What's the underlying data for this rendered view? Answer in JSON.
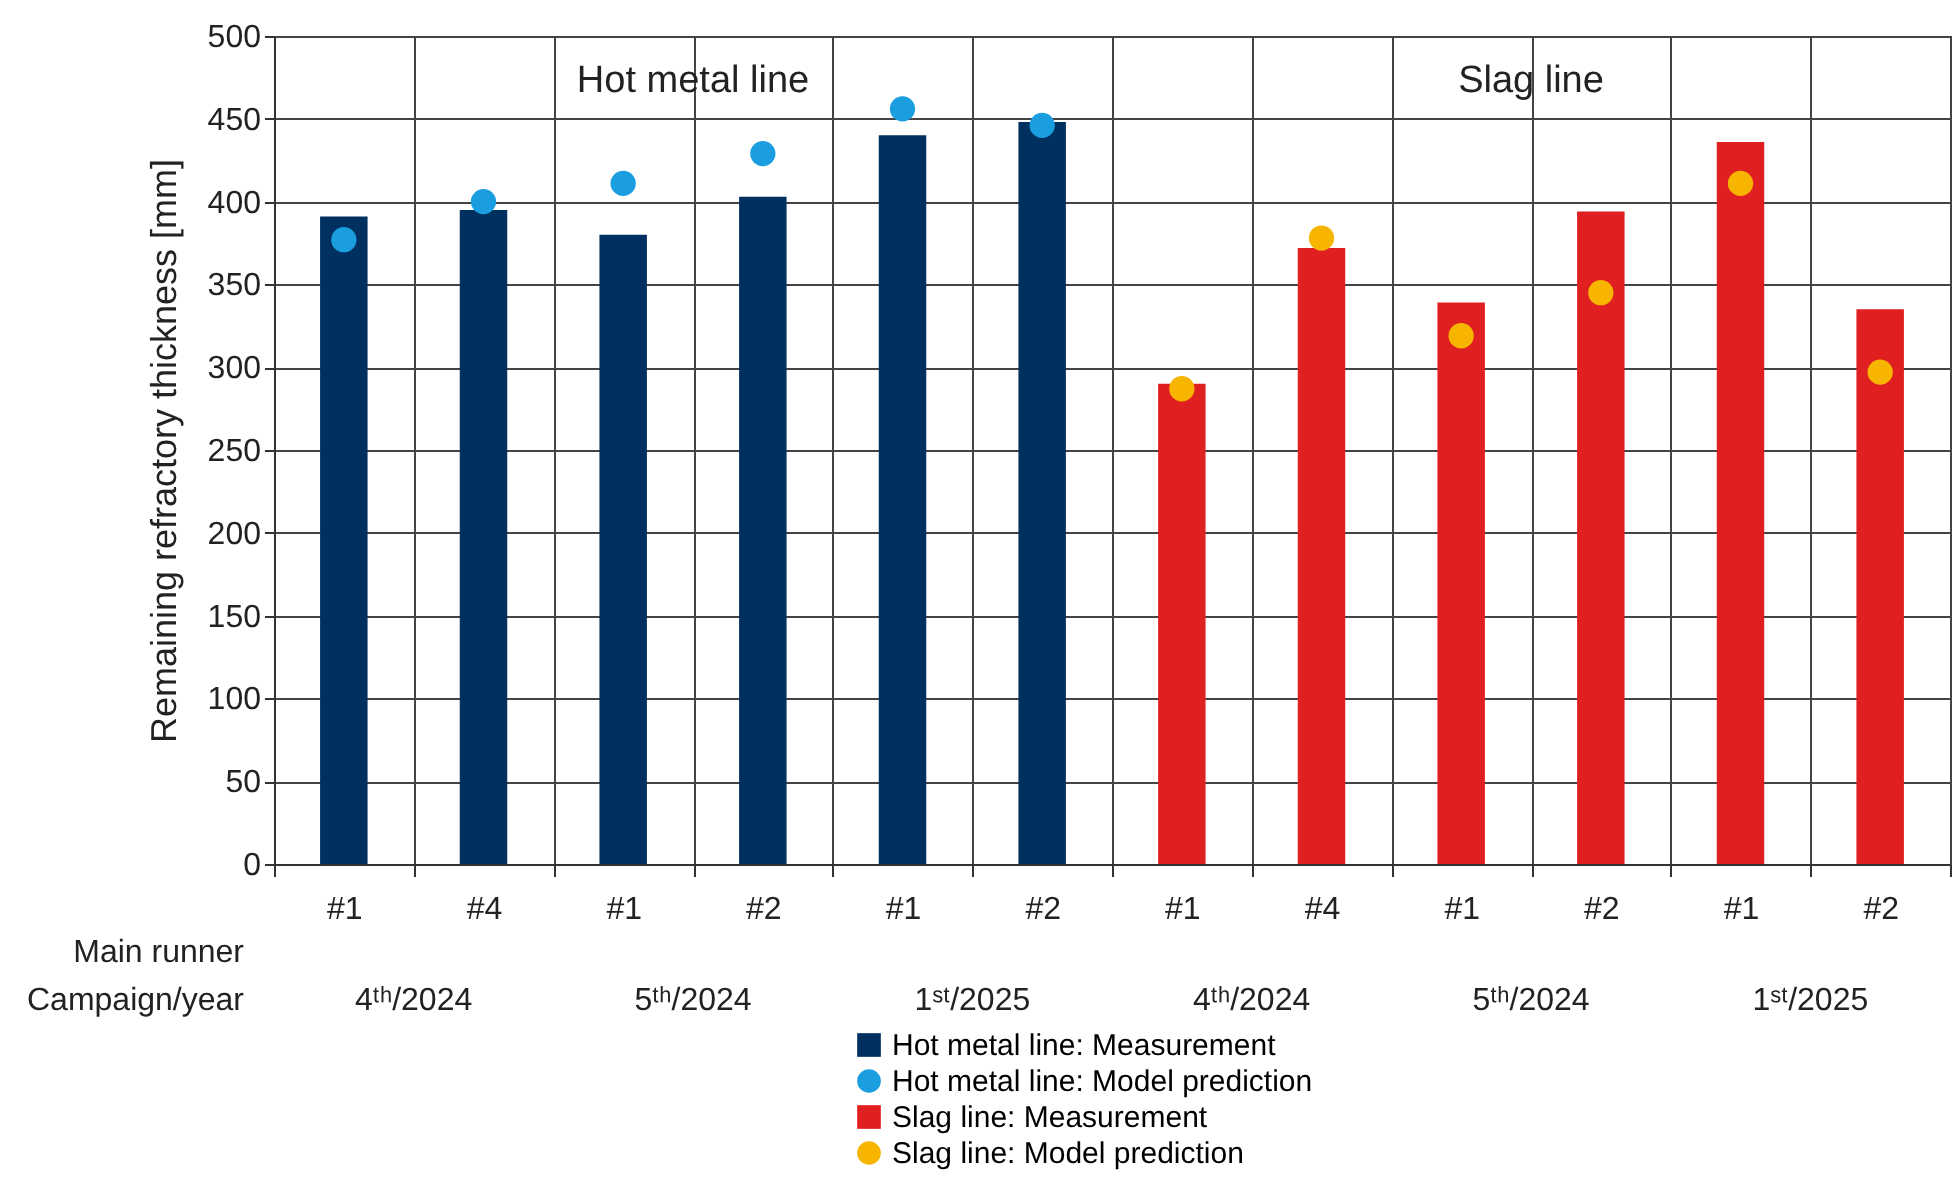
{
  "chart_data": {
    "type": "bar",
    "ylabel": "Remaining refractory thickness [mm]",
    "categories": [
      "#1",
      "#4",
      "#1",
      "#2",
      "#1",
      "#2",
      "#1",
      "#4",
      "#1",
      "#2",
      "#1",
      "#2"
    ],
    "series": [
      {
        "name": "Hot metal line: Measurement",
        "color": "#00305f",
        "values": [
          391,
          395,
          380,
          403,
          440,
          448,
          null,
          null,
          null,
          null,
          null,
          null
        ]
      },
      {
        "name": "Hot metal line: Model prediction",
        "type": "scatter",
        "color": "#1a9ee0",
        "values": [
          377,
          400,
          411,
          429,
          456,
          446,
          null,
          null,
          null,
          null,
          null,
          null
        ]
      },
      {
        "name": "Slag line: Measurement",
        "color": "#e02020",
        "values": [
          null,
          null,
          null,
          null,
          null,
          null,
          290,
          372,
          339,
          394,
          436,
          335
        ]
      },
      {
        "name": "Slag line: Model prediction",
        "type": "scatter",
        "color": "#f7b500",
        "values": [
          null,
          null,
          null,
          null,
          null,
          null,
          287,
          378,
          319,
          345,
          411,
          297
        ]
      }
    ],
    "annotations": [
      "Hot metal line",
      "Slag line",
      "Main runner",
      "Campaign/year",
      "4ᵗʰ/2024",
      "5ᵗʰ/2024",
      "1ˢᵗ/2025",
      "4ᵗʰ/2024",
      "5ᵗʰ/2024",
      "1ˢᵗ/2025"
    ],
    "ylim": [
      0,
      500
    ],
    "yticks": [
      0,
      50,
      100,
      150,
      200,
      250,
      300,
      350,
      400,
      450,
      500
    ],
    "grid": true,
    "legend": "bottom",
    "marker": "circle"
  }
}
